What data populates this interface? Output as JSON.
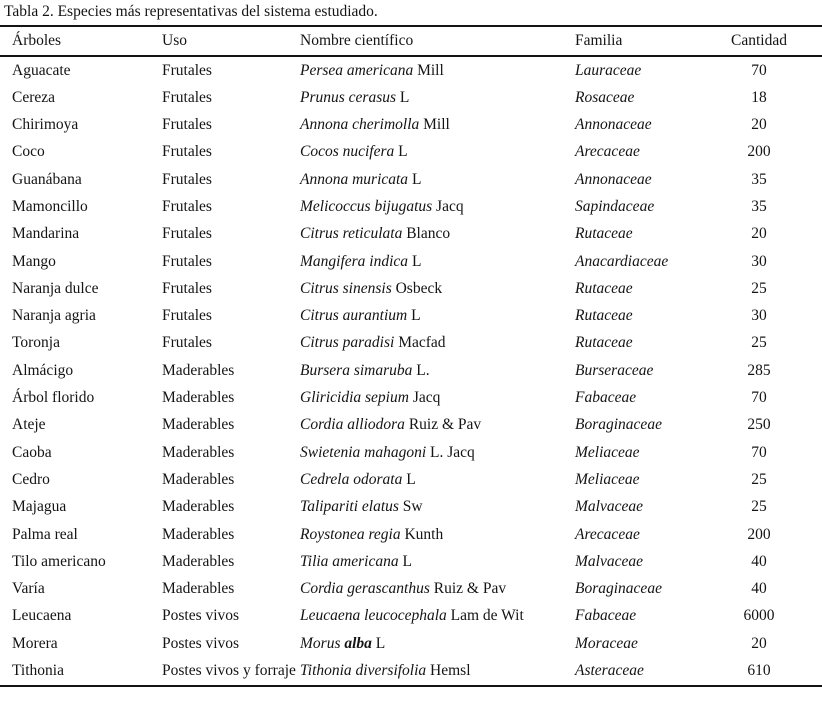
{
  "caption": "Tabla 2. Especies más representativas del sistema estudiado.",
  "columns": [
    "Árboles",
    "Uso",
    "Nombre científico",
    "Familia",
    "Cantidad"
  ],
  "rows": [
    {
      "arbol": "Aguacate",
      "uso": "Frutales",
      "sci": "Persea americana",
      "author": "Mill",
      "familia": "Lauraceae",
      "cantidad": "70"
    },
    {
      "arbol": "Cereza",
      "uso": "Frutales",
      "sci": "Prunus cerasus",
      "author": "L",
      "familia": "Rosaceae",
      "cantidad": "18"
    },
    {
      "arbol": "Chirimoya",
      "uso": "Frutales",
      "sci": "Annona cherimolla",
      "author": "Mill",
      "familia": "Annonaceae",
      "cantidad": "20"
    },
    {
      "arbol": "Coco",
      "uso": "Frutales",
      "sci": "Cocos nucifera",
      "author": "L",
      "familia": "Arecaceae",
      "cantidad": "200"
    },
    {
      "arbol": "Guanábana",
      "uso": "Frutales",
      "sci": "Annona muricata",
      "author": "L",
      "familia": "Annonaceae",
      "cantidad": "35"
    },
    {
      "arbol": "Mamoncillo",
      "uso": "Frutales",
      "sci": "Melicoccus bijugatus",
      "author": "Jacq",
      "familia": "Sapindaceae",
      "cantidad": "35"
    },
    {
      "arbol": "Mandarina",
      "uso": "Frutales",
      "sci": "Citrus reticulata",
      "author": "Blanco",
      "familia": "Rutaceae",
      "cantidad": "20"
    },
    {
      "arbol": "Mango",
      "uso": "Frutales",
      "sci": "Mangifera indica",
      "author": "L",
      "familia": "Anacardiaceae",
      "cantidad": "30"
    },
    {
      "arbol": "Naranja dulce",
      "uso": "Frutales",
      "sci": "Citrus sinensis",
      "author": "Osbeck",
      "familia": "Rutaceae",
      "cantidad": "25"
    },
    {
      "arbol": "Naranja agria",
      "uso": "Frutales",
      "sci": "Citrus aurantium",
      "author": "L",
      "familia": "Rutaceae",
      "cantidad": "30"
    },
    {
      "arbol": "Toronja",
      "uso": "Frutales",
      "sci": "Citrus paradisi",
      "author": "Macfad",
      "familia": "Rutaceae",
      "cantidad": "25"
    },
    {
      "arbol": "Almácigo",
      "uso": "Maderables",
      "sci": "Bursera simaruba",
      "author": "L.",
      "familia": "Burseraceae",
      "cantidad": "285"
    },
    {
      "arbol": "Árbol florido",
      "uso": "Maderables",
      "sci": "Gliricidia sepium",
      "author": "Jacq",
      "familia": "Fabaceae",
      "cantidad": "70"
    },
    {
      "arbol": "Ateje",
      "uso": "Maderables",
      "sci": "Cordia alliodora",
      "author": "Ruiz & Pav",
      "familia": "Boraginaceae",
      "cantidad": "250"
    },
    {
      "arbol": "Caoba",
      "uso": "Maderables",
      "sci": "Swietenia mahagoni",
      "author": "L. Jacq",
      "familia": "Meliaceae",
      "cantidad": "70"
    },
    {
      "arbol": "Cedro",
      "uso": "Maderables",
      "sci": "Cedrela odorata",
      "author": "L",
      "familia": "Meliaceae",
      "cantidad": "25"
    },
    {
      "arbol": "Majagua",
      "uso": "Maderables",
      "sci": "Talipariti elatus",
      "author": "Sw",
      "familia": "Malvaceae",
      "cantidad": "25"
    },
    {
      "arbol": "Palma real",
      "uso": "Maderables",
      "sci": "Roystonea regia",
      "author": "Kunth",
      "familia": "Arecaceae",
      "cantidad": "200"
    },
    {
      "arbol": "Tilo americano",
      "uso": "Maderables",
      "sci": "Tilia americana",
      "author": "L",
      "familia": "Malvaceae",
      "cantidad": "40"
    },
    {
      "arbol": "Varía",
      "uso": "Maderables",
      "sci": "Cordia gerascanthus",
      "author": "Ruiz & Pav",
      "familia": "Boraginaceae",
      "cantidad": "40"
    },
    {
      "arbol": "Leucaena",
      "uso": "Postes vivos",
      "sci": "Leucaena leucocephala",
      "author": "Lam de Wit",
      "familia": "Fabaceae",
      "cantidad": "6000"
    },
    {
      "arbol": "Morera",
      "uso": "Postes vivos",
      "sci": "Morus",
      "sci_bold": "alba",
      "author": "L",
      "familia": "Moraceae",
      "cantidad": "20"
    },
    {
      "arbol": "Tithonia",
      "uso": "Postes vivos y forraje",
      "sci": "Tithonia diversifolia",
      "author": "Hemsl",
      "familia": "Asteraceae",
      "cantidad": "610"
    }
  ]
}
